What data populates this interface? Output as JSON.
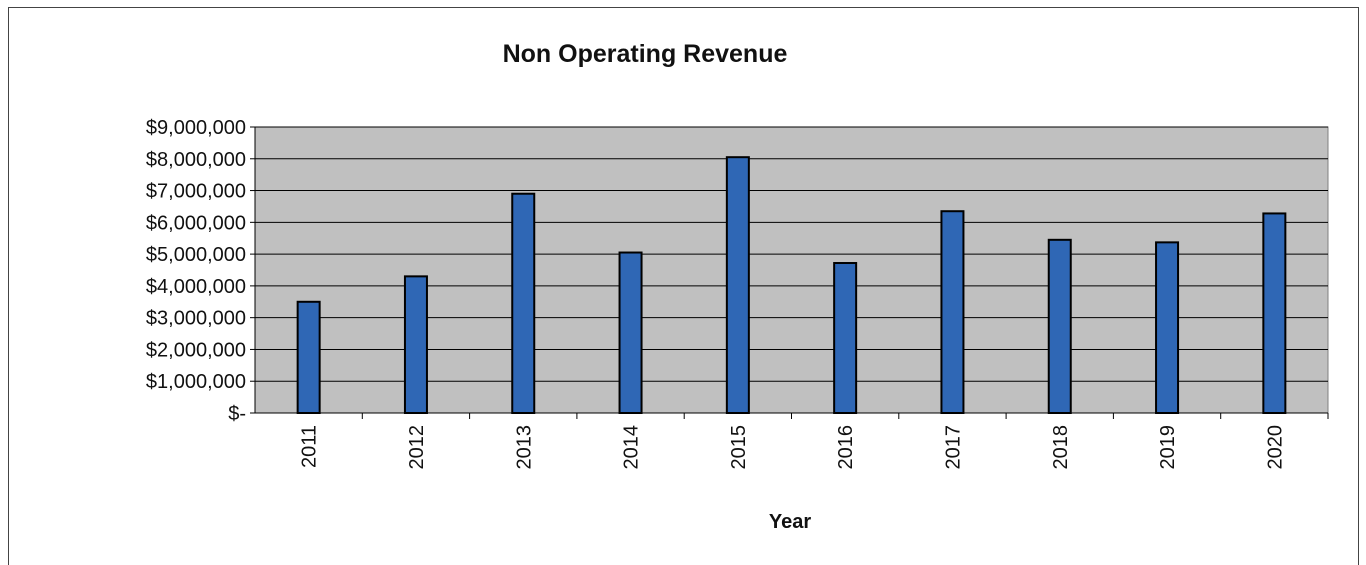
{
  "chart_data": {
    "type": "bar",
    "title": "Non Operating Revenue",
    "x_label": "Year",
    "categories": [
      "2011",
      "2012",
      "2013",
      "2014",
      "2015",
      "2016",
      "2017",
      "2018",
      "2019",
      "2020"
    ],
    "values": [
      3500000,
      4300000,
      6900000,
      5050000,
      8050000,
      4720000,
      6350000,
      5450000,
      5370000,
      6280000
    ],
    "color": "#2f67b5",
    "ylim": [
      0,
      9000000
    ],
    "yticks": [
      {
        "value": 0,
        "label": "$-"
      },
      {
        "value": 1000000,
        "label": "$1,000,000"
      },
      {
        "value": 2000000,
        "label": "$2,000,000"
      },
      {
        "value": 3000000,
        "label": "$3,000,000"
      },
      {
        "value": 4000000,
        "label": "$4,000,000"
      },
      {
        "value": 5000000,
        "label": "$5,000,000"
      },
      {
        "value": 6000000,
        "label": "$6,000,000"
      },
      {
        "value": 7000000,
        "label": "$7,000,000"
      },
      {
        "value": 8000000,
        "label": "$8,000,000"
      },
      {
        "value": 9000000,
        "label": "$9,000,000"
      }
    ],
    "grid": true
  }
}
